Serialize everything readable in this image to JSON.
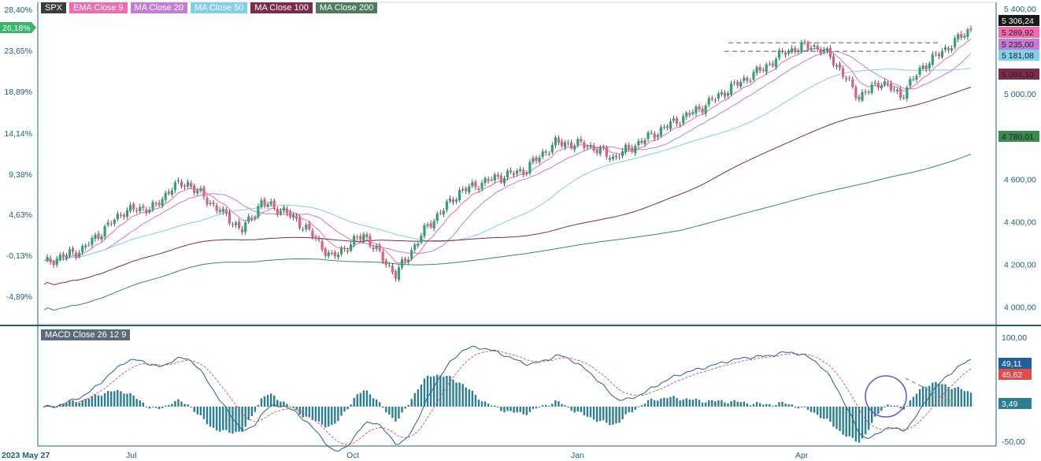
{
  "colors": {
    "up": "#2ea36f",
    "down": "#e0607a",
    "ema9": "#f06bb0",
    "ma20": "#c77bd8",
    "ma50": "#7fd0e8",
    "ma100": "#7d2a4c",
    "ma200": "#3b8a52",
    "macd": "#1f5f9a",
    "signal": "#e34b4b",
    "hist": "#2a7f96",
    "axis": "#1d5f7d"
  },
  "legend": [
    {
      "label": "SPX",
      "bg": "#3c3c3c"
    },
    {
      "label": "EMA Close 9",
      "bg": "#f06bb0"
    },
    {
      "label": "MA Close 20",
      "bg": "#c77bd8"
    },
    {
      "label": "MA Close 50",
      "bg": "#7fd0e8"
    },
    {
      "label": "MA Close 100",
      "bg": "#7d2a4c"
    },
    {
      "label": "MA Close 200",
      "bg": "#4f7a5e"
    }
  ],
  "macd_label": "MACD Close 26 12 9",
  "current_pct": "26,18%",
  "chart_data": [
    {
      "type": "candlestick",
      "title": "SPX",
      "x_tick_labels": [
        "2023 May 27",
        "Jul",
        "Oct",
        "Jan",
        "Apr"
      ],
      "left_axis_labels": [
        "28,40%",
        "23,65%",
        "18,89%",
        "14,14%",
        "9,38%",
        "4,63%",
        "-0,13%",
        "-4,89%"
      ],
      "right_axis_labels": [
        "5 400,00",
        "5 000,00",
        "4 800,00",
        "4 600,00",
        "4 400,00",
        "4 200,00",
        "4 000,00"
      ],
      "ylim": [
        3920,
        5430
      ],
      "price_tags": [
        {
          "label": "5 306,24",
          "value": 5306.24,
          "bg": "#1a1a1a"
        },
        {
          "label": "5 289,92",
          "value": 5289.92,
          "bg": "#f06bb0"
        },
        {
          "label": "5 235,00",
          "value": 5235.0,
          "bg": "#c77bd8"
        },
        {
          "label": "5 181,08",
          "value": 5181.08,
          "bg": "#7fd0e8"
        },
        {
          "label": "5 084,10",
          "value": 5084.1,
          "bg": "#7d2a4c"
        },
        {
          "label": "4 780,01",
          "value": 4780.01,
          "bg": "#3b8a52"
        }
      ],
      "key_closes": [
        {
          "period": "2023 May 27",
          "close": 4205
        },
        {
          "period": "Jul",
          "close": 4450
        },
        {
          "period": "Jul end",
          "close": 4580
        },
        {
          "period": "Oct",
          "close": 4230
        },
        {
          "period": "Oct end",
          "close": 4120
        },
        {
          "period": "Dec",
          "close": 4770
        },
        {
          "period": "Jan",
          "close": 4700
        },
        {
          "period": "Mar",
          "close": 5230
        },
        {
          "period": "Apr",
          "close": 5200
        },
        {
          "period": "Apr mid",
          "close": 4990
        },
        {
          "period": "last",
          "close": 5306.24
        }
      ],
      "resistance": [
        5240,
        5200
      ]
    },
    {
      "type": "macd",
      "title": "MACD Close 26 12 9",
      "axis_labels": [
        "100,00",
        "-50,00"
      ],
      "ylim": [
        -52,
        104
      ],
      "tags": [
        {
          "label": "49,11",
          "value": 49.11,
          "bg": "#1f5f9a"
        },
        {
          "label": "45,62",
          "value": 45.62,
          "bg": "#e34b4b"
        },
        {
          "label": "3,49",
          "value": 3.49,
          "bg": "#2a7f96"
        }
      ]
    }
  ]
}
